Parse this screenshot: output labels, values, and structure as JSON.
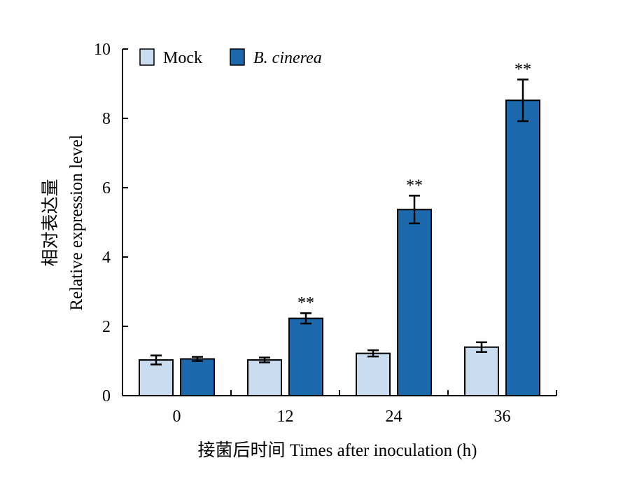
{
  "chart_data": {
    "type": "bar",
    "categories": [
      "0",
      "12",
      "24",
      "36"
    ],
    "series": [
      {
        "name": "Mock",
        "values": [
          1.03,
          1.03,
          1.22,
          1.4
        ],
        "errors": [
          0.13,
          0.07,
          0.09,
          0.14
        ],
        "significance": [
          "",
          "",
          "",
          ""
        ],
        "color": "#cadcf0"
      },
      {
        "name": "B. cinerea",
        "values": [
          1.06,
          2.23,
          5.37,
          8.52
        ],
        "errors": [
          0.06,
          0.15,
          0.4,
          0.6
        ],
        "significance": [
          "",
          "**",
          "**",
          "**"
        ],
        "color": "#1c68ad"
      }
    ],
    "xlabel": "接菌后时间 Times after inoculation (h)",
    "ylabel_cn": "相对表达量",
    "ylabel_en": "Relative expression level",
    "ylim": [
      0,
      10
    ],
    "yticks": [
      "0",
      "2",
      "4",
      "6",
      "8",
      "10"
    ],
    "legend": {
      "position": "top-left",
      "italic_series": [
        "B. cinerea"
      ]
    },
    "grid": false
  }
}
